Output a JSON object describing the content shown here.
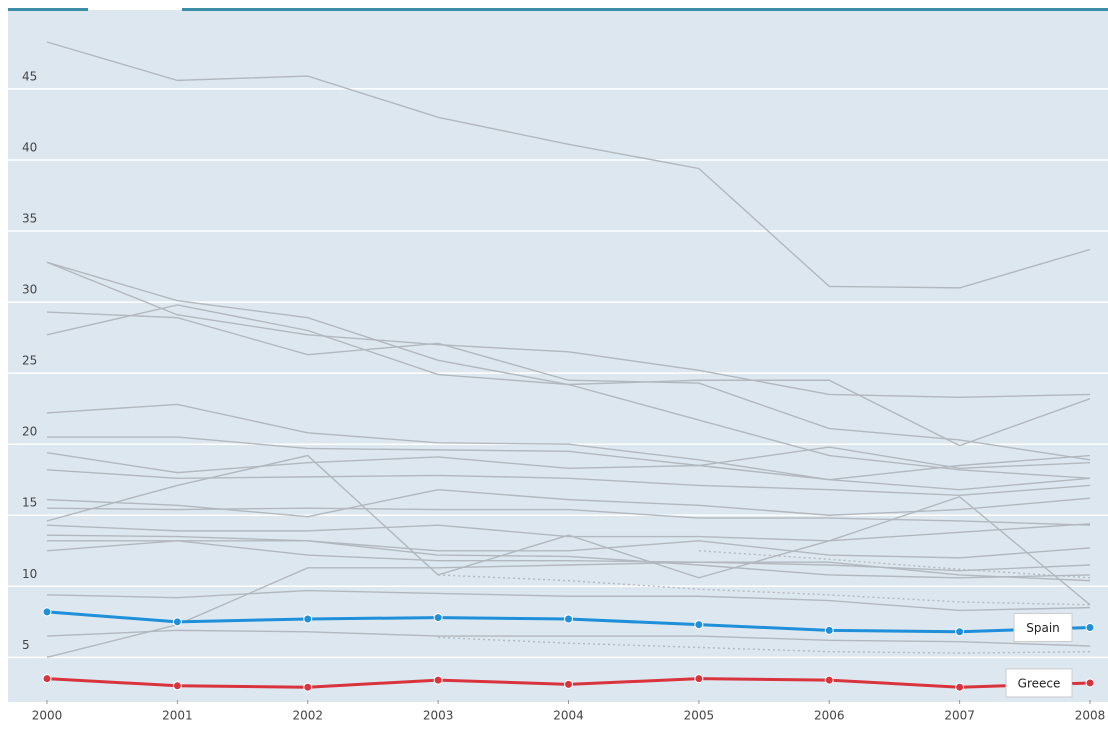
{
  "chart_data": {
    "type": "line",
    "x": [
      2000,
      2001,
      2002,
      2003,
      2004,
      2005,
      2006,
      2007,
      2008
    ],
    "xlim": [
      2000,
      2008
    ],
    "xticks": [
      2000,
      2001,
      2002,
      2003,
      2004,
      2005,
      2006,
      2007,
      2008
    ],
    "ylim": [
      2,
      50.2
    ],
    "yticks": [
      5,
      10,
      15,
      20,
      25,
      30,
      35,
      40,
      45
    ],
    "grid": true,
    "series": [
      {
        "color": "#b3b8be",
        "values": [
          48.3,
          45.6,
          45.9,
          43.0,
          41.1,
          39.4,
          31.1,
          31.0,
          33.7
        ]
      },
      {
        "color": "#b3b8be",
        "values": [
          32.8,
          30.1,
          28.9,
          25.9,
          24.2,
          21.7,
          19.2,
          18.2,
          17.6
        ]
      },
      {
        "color": "#b3b8be",
        "values": [
          32.8,
          29.1,
          27.7,
          27.0,
          26.5,
          25.2,
          23.5,
          23.3,
          23.5
        ]
      },
      {
        "color": "#b3b8be",
        "values": [
          27.7,
          29.8,
          28.0,
          24.9,
          24.2,
          24.5,
          24.5,
          19.9,
          23.2
        ]
      },
      {
        "color": "#b3b8be",
        "values": [
          29.3,
          28.9,
          26.3,
          27.1,
          24.5,
          24.3,
          21.1,
          20.3,
          18.9
        ]
      },
      {
        "color": "#b3b8be",
        "values": [
          22.2,
          22.8,
          20.8,
          20.1,
          20.0,
          18.9,
          17.5,
          18.5,
          19.2
        ]
      },
      {
        "color": "#b3b8be",
        "values": [
          20.5,
          20.5,
          19.7,
          19.6,
          19.5,
          18.5,
          19.8,
          18.3,
          18.7
        ]
      },
      {
        "color": "#b3b8be",
        "values": [
          19.4,
          18.0,
          18.7,
          19.1,
          18.3,
          18.5,
          17.5,
          16.8,
          17.6
        ]
      },
      {
        "color": "#b3b8be",
        "values": [
          18.2,
          17.6,
          17.7,
          17.8,
          17.6,
          17.1,
          16.8,
          16.4,
          17.1
        ]
      },
      {
        "color": "#b3b8be",
        "values": [
          14.6,
          17.1,
          19.2,
          10.8,
          13.6,
          10.6,
          13.2,
          16.3,
          8.7
        ]
      },
      {
        "color": "#b3b8be",
        "values": [
          16.1,
          15.7,
          14.9,
          16.8,
          16.1,
          15.7,
          15.0,
          15.4,
          16.2
        ]
      },
      {
        "color": "#b3b8be",
        "values": [
          15.5,
          15.4,
          15.5,
          15.4,
          15.4,
          14.8,
          14.8,
          14.6,
          14.3
        ]
      },
      {
        "color": "#b3b8be",
        "values": [
          14.3,
          13.9,
          13.9,
          14.3,
          13.5,
          13.5,
          13.2,
          13.8,
          14.4
        ]
      },
      {
        "color": "#b3b8be",
        "values": [
          13.6,
          13.5,
          13.2,
          12.5,
          12.5,
          13.2,
          12.2,
          12.0,
          12.7
        ]
      },
      {
        "color": "#b3b8be",
        "values": [
          12.5,
          13.2,
          12.2,
          11.8,
          11.8,
          11.7,
          11.5,
          11.1,
          11.5
        ]
      },
      {
        "color": "#b3b8be",
        "values": [
          13.2,
          13.2,
          13.2,
          12.2,
          12.1,
          11.5,
          10.8,
          10.6,
          10.8
        ]
      },
      {
        "color": "#b3b8be",
        "values": [
          9.4,
          9.2,
          9.7,
          9.5,
          9.3,
          9.3,
          9.0,
          8.3,
          8.5
        ]
      },
      {
        "color": "#b3b8be",
        "values": [
          6.5,
          6.9,
          6.8,
          6.5,
          6.5,
          6.5,
          6.2,
          6.1,
          5.8
        ]
      },
      {
        "color": "#b3b8be",
        "values": [
          5.0,
          7.3,
          11.3,
          11.3,
          11.5,
          11.7,
          11.7,
          10.8,
          10.4
        ]
      },
      {
        "color": "#b3b8be",
        "dashed": true,
        "values": [
          null,
          null,
          null,
          10.8,
          10.4,
          9.8,
          9.4,
          8.9,
          8.7
        ]
      },
      {
        "color": "#b3b8be",
        "dashed": true,
        "values": [
          null,
          null,
          null,
          6.4,
          6.0,
          5.7,
          5.4,
          5.3,
          5.4
        ]
      },
      {
        "color": "#b3b8be",
        "dashed": true,
        "values": [
          null,
          null,
          null,
          null,
          null,
          12.5,
          11.9,
          11.2,
          10.6
        ]
      },
      {
        "name": "Spain",
        "color": "#1e8fd8",
        "markers": true,
        "values": [
          8.2,
          7.5,
          7.7,
          7.8,
          7.7,
          7.3,
          6.9,
          6.8,
          7.1
        ]
      },
      {
        "name": "Greece",
        "color": "#d9343d",
        "markers": true,
        "values": [
          3.5,
          3.0,
          2.9,
          3.4,
          3.1,
          3.5,
          3.4,
          2.9,
          3.2
        ]
      }
    ]
  }
}
